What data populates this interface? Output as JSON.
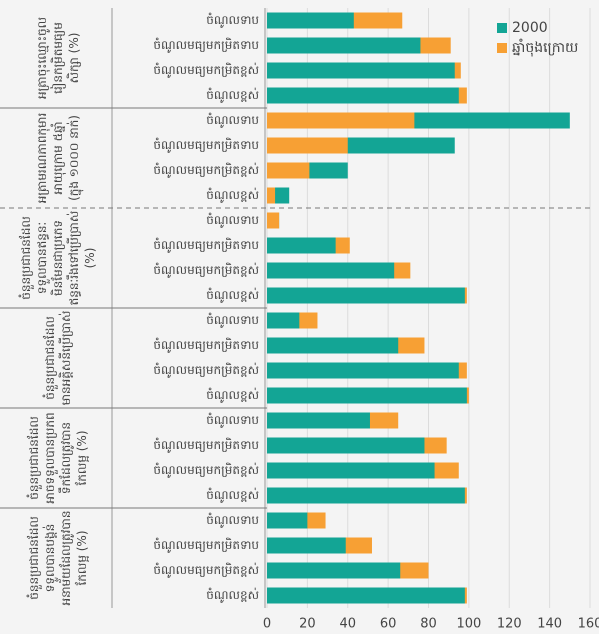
{
  "chart_data": {
    "type": "bar",
    "orientation": "horizontal",
    "groups": [
      "អត្រាចុះឈ្មោះចូលរៀនកម្រិតមធ្យមសិក្សា (%)",
      "អត្រាមរណភាពកុមារអាយុក្រោម ៥ឆ្នាំ (ក្នុង ១០០០ នាក់)",
      "ចំនួនប្រជាជនដែលទទួលបានឥន្ធនៈមិនមែនជាប្រភេទឥន្ធនៈរឹងទៅប្រើប្រាស់ (%)",
      "ចំនួនប្រជាជនដែលមានអគ្គិសនីប្រើប្រាស់",
      "ចំនួនប្រជាជនដែលអាចទទួលបានប្រភពទឹកដែលត្រូវបានកែលម្អ (%)",
      "ចំនួនប្រជាជនដែលទទួលបានបង្គន់អនាម័យដែលត្រូវបានកែលម្អ (%)"
    ],
    "categories": [
      "ចំណូលទាប",
      "ចំណូលមធ្យមកម្រិតទាប",
      "ចំណូលមធ្យមកម្រិតខ្ពស់",
      "ចំណូលខ្ពស់",
      "ចំណូលទាប",
      "ចំណូលមធ្យមកម្រិតទាប",
      "ចំណូលមធ្យមកម្រិតខ្ពស់",
      "ចំណូលខ្ពស់",
      "ចំណូលទាប",
      "ចំណូលមធ្យមកម្រិតទាប",
      "ចំណូលមធ្យមកម្រិតខ្ពស់",
      "ចំណូលខ្ពស់",
      "ចំណូលទាប",
      "ចំណូលមធ្យមកម្រិតទាប",
      "ចំណូលមធ្យមកម្រិតខ្ពស់",
      "ចំណូលខ្ពស់",
      "ចំណូលទាប",
      "ចំណូលមធ្យមកម្រិតទាប",
      "ចំណូលមធ្យមកម្រិតខ្ពស់",
      "ចំណូលខ្ពស់",
      "ចំណូលទាប",
      "ចំណូលមធ្យមកម្រិតទាប",
      "ចំណូលមធ្យមកម្រិតខ្ពស់",
      "ចំណូលខ្ពស់"
    ],
    "series": [
      {
        "name": "2000",
        "color": "#13a595",
        "values": [
          43,
          76,
          93,
          95,
          150,
          93,
          40,
          11,
          6,
          34,
          63,
          98,
          16,
          65,
          95,
          99,
          51,
          78,
          83,
          98,
          20,
          39,
          66,
          98
        ]
      },
      {
        "name": "ឆ្នាំចុងក្រោយ",
        "color": "#f7a034",
        "values": [
          67,
          91,
          96,
          99,
          73,
          40,
          21,
          4,
          6,
          41,
          71,
          99,
          25,
          78,
          99,
          100,
          65,
          89,
          95,
          99,
          29,
          52,
          80,
          99
        ]
      }
    ],
    "xlim": [
      0,
      160
    ],
    "xticks": [
      0,
      20,
      40,
      60,
      80,
      100,
      120,
      140,
      160
    ],
    "grid": true,
    "legend": "top-right"
  }
}
